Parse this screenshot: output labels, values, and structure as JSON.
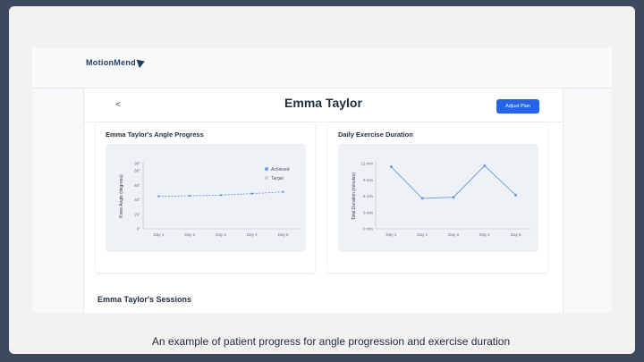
{
  "app": {
    "logo_text": "MotionMend"
  },
  "header": {
    "back_symbol": "<",
    "patient_name": "Emma Taylor",
    "adjust_label": "Adjust Plan"
  },
  "sessions_heading": "Emma Taylor's Sessions",
  "caption": "An example of patient progress for angle progression and exercise duration",
  "colors": {
    "accent": "#2563eb",
    "series_line": "#6b9be0",
    "target_marker": "#c7ccd4"
  },
  "chart_data": [
    {
      "type": "line",
      "title": "Emma Taylor's Angle Progress",
      "xlabel": "",
      "ylabel": "Knee Angle (degrees)",
      "categories": [
        "Day 1",
        "Day 2",
        "Day 3",
        "Day 4",
        "Day 5"
      ],
      "y_ticks": [
        "0°",
        "20°",
        "40°",
        "60°",
        "80°",
        "90°"
      ],
      "y_tick_values": [
        0,
        20,
        40,
        60,
        80,
        90
      ],
      "ylim": [
        0,
        90
      ],
      "series": [
        {
          "name": "Achieved",
          "values": [
            45,
            45.5,
            46.5,
            48.5,
            51
          ]
        },
        {
          "name": "Target",
          "values": [
            45,
            45.5,
            46.5,
            48.5,
            51
          ]
        }
      ],
      "legend": "top-right"
    },
    {
      "type": "line",
      "title": "Daily Exercise Duration",
      "xlabel": "",
      "ylabel": "Total Duration (minutes)",
      "categories": [
        "Day 1",
        "Day 2",
        "Day 3",
        "Day 4",
        "Day 5"
      ],
      "y_ticks": [
        "0 min",
        "3 min",
        "6 min",
        "9 min",
        "12 min"
      ],
      "y_tick_values": [
        0,
        3,
        6,
        9,
        12
      ],
      "ylim": [
        0,
        12
      ],
      "series": [
        {
          "values": [
            11.4,
            5.6,
            5.8,
            11.6,
            6.2
          ]
        }
      ]
    }
  ]
}
